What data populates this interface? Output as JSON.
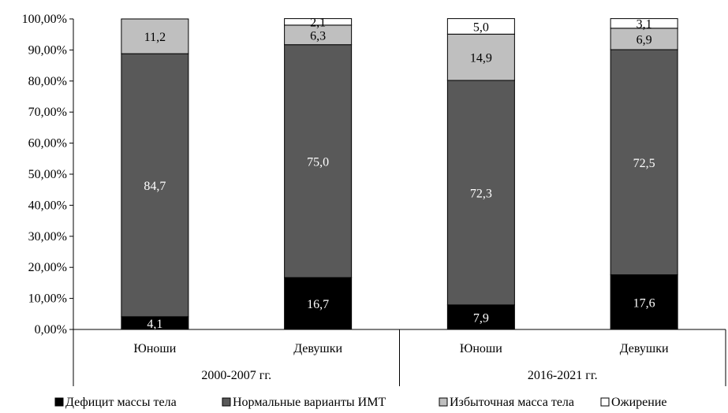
{
  "chart_data": {
    "type": "bar",
    "stacked": true,
    "ylim": [
      0,
      100
    ],
    "y_ticks": [
      "0,00%",
      "10,00%",
      "20,00%",
      "30,00%",
      "40,00%",
      "50,00%",
      "60,00%",
      "70,00%",
      "80,00%",
      "90,00%",
      "100,00%"
    ],
    "categories": [
      "Юноши",
      "Девушки",
      "Юноши",
      "Девушки"
    ],
    "groups": [
      {
        "label": "2000-2007 гг."
      },
      {
        "label": "2016-2021 гг."
      }
    ],
    "series": [
      {
        "name": "Дефицит массы тела",
        "color": "#000000",
        "values": [
          4.1,
          16.7,
          7.9,
          17.6
        ],
        "labels": [
          "4,1",
          "16,7",
          "7,9",
          "17,6"
        ]
      },
      {
        "name": "Нормальные варианты ИМТ",
        "color": "#595959",
        "values": [
          84.7,
          75.0,
          72.3,
          72.5
        ],
        "labels": [
          "84,7",
          "75,0",
          "72,3",
          "72,5"
        ]
      },
      {
        "name": "Избыточная масса тела",
        "color": "#bfbfbf",
        "values": [
          11.2,
          6.3,
          14.9,
          6.9
        ],
        "labels": [
          "11,2",
          "6,3",
          "14,9",
          "6,9"
        ]
      },
      {
        "name": "Ожирение",
        "color": "#ffffff",
        "values": [
          0,
          2.1,
          5.0,
          3.1
        ],
        "labels": [
          "",
          "2,1",
          "5,0",
          "3,1"
        ]
      }
    ],
    "grid": false,
    "legend_position": "bottom"
  }
}
